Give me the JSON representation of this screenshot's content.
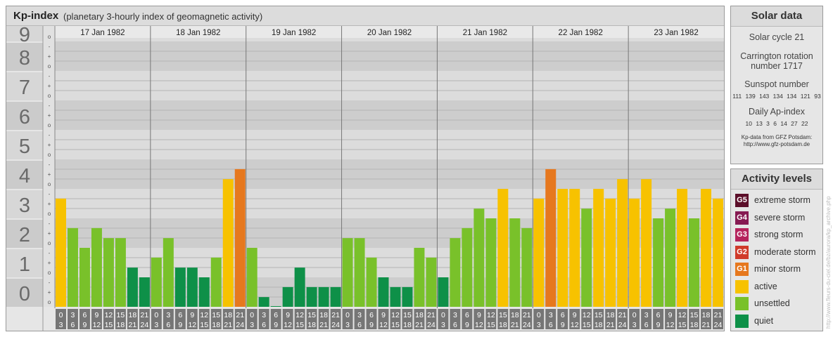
{
  "title": {
    "main": "Kp-index",
    "sub": "(planetary 3-hourly index of geomagnetic activity)"
  },
  "chart_data": {
    "type": "bar",
    "y_axis_labels": [
      "0",
      "1",
      "2",
      "3",
      "4",
      "5",
      "6",
      "7",
      "8",
      "9"
    ],
    "y_minor_labels": [
      "-",
      "o",
      "+"
    ],
    "ylim": [
      0,
      9.33
    ],
    "interval_start_labels": [
      "0",
      "3",
      "6",
      "9",
      "12",
      "15",
      "18",
      "21"
    ],
    "interval_end_labels": [
      "3",
      "6",
      "9",
      "12",
      "15",
      "18",
      "21",
      "24"
    ],
    "days": [
      {
        "date": "17 Jan 1982",
        "kp": [
          3.67,
          2.67,
          2.0,
          2.67,
          2.33,
          2.33,
          1.33,
          1.0
        ],
        "levels": [
          "active",
          "unsettled",
          "unsettled",
          "unsettled",
          "unsettled",
          "unsettled",
          "quiet",
          "quiet"
        ]
      },
      {
        "date": "18 Jan 1982",
        "kp": [
          1.67,
          2.33,
          1.33,
          1.33,
          1.0,
          1.67,
          4.33,
          4.67
        ],
        "levels": [
          "unsettled",
          "unsettled",
          "quiet",
          "quiet",
          "quiet",
          "unsettled",
          "active",
          "minor storm"
        ]
      },
      {
        "date": "19 Jan 1982",
        "kp": [
          2.0,
          0.33,
          0.0,
          0.67,
          1.33,
          0.67,
          0.67,
          0.67
        ],
        "levels": [
          "unsettled",
          "quiet",
          "quiet",
          "quiet",
          "quiet",
          "quiet",
          "quiet",
          "quiet"
        ]
      },
      {
        "date": "20 Jan 1982",
        "kp": [
          2.33,
          2.33,
          1.67,
          1.0,
          0.67,
          0.67,
          2.0,
          1.67
        ],
        "levels": [
          "unsettled",
          "unsettled",
          "unsettled",
          "quiet",
          "quiet",
          "quiet",
          "unsettled",
          "unsettled"
        ]
      },
      {
        "date": "21 Jan 1982",
        "kp": [
          1.0,
          2.33,
          2.67,
          3.33,
          3.0,
          4.0,
          3.0,
          2.67
        ],
        "levels": [
          "quiet",
          "unsettled",
          "unsettled",
          "unsettled",
          "unsettled",
          "active",
          "unsettled",
          "unsettled"
        ]
      },
      {
        "date": "22 Jan 1982",
        "kp": [
          3.67,
          4.67,
          4.0,
          4.0,
          3.33,
          4.0,
          3.67,
          4.33
        ],
        "levels": [
          "active",
          "minor storm",
          "active",
          "active",
          "unsettled",
          "active",
          "active",
          "active"
        ]
      },
      {
        "date": "23 Jan 1982",
        "kp": [
          3.67,
          4.33,
          3.0,
          3.33,
          4.0,
          3.0,
          4.0,
          3.67
        ],
        "levels": [
          "active",
          "active",
          "unsettled",
          "unsettled",
          "active",
          "unsettled",
          "active",
          "active"
        ]
      }
    ]
  },
  "solar": {
    "title": "Solar data",
    "cycle": "Solar cycle 21",
    "carrington_label": "Carrington rotation",
    "carrington_number": "number 1717",
    "sunspot_title": "Sunspot number",
    "sunspot_values": "111 139 143 134 134 121 93",
    "ap_title": "Daily Ap-index",
    "ap_values": "10 13 3 6 14 27 22",
    "source_line1": "Kp-data from GFZ Potsdam:",
    "source_line2": "http://www.gfz-potsdam.de"
  },
  "levels": {
    "title": "Activity levels",
    "items": [
      {
        "code": "G5",
        "label": "extreme storm",
        "color": "#5c0f2a"
      },
      {
        "code": "G4",
        "label": "severe storm",
        "color": "#861a52"
      },
      {
        "code": "G3",
        "label": "strong storm",
        "color": "#b5245c"
      },
      {
        "code": "G2",
        "label": "moderate storm",
        "color": "#d03a2a"
      },
      {
        "code": "G1",
        "label": "minor storm",
        "color": "#e6781e"
      },
      {
        "code": "",
        "label": "active",
        "color": "#f7c200"
      },
      {
        "code": "",
        "label": "unsettled",
        "color": "#79c12a"
      },
      {
        "code": "",
        "label": "quiet",
        "color": "#0e9048"
      }
    ]
  },
  "watermark": "http://www.fleurs-du-ciel.de/bz/aurora/kp_archive.php"
}
